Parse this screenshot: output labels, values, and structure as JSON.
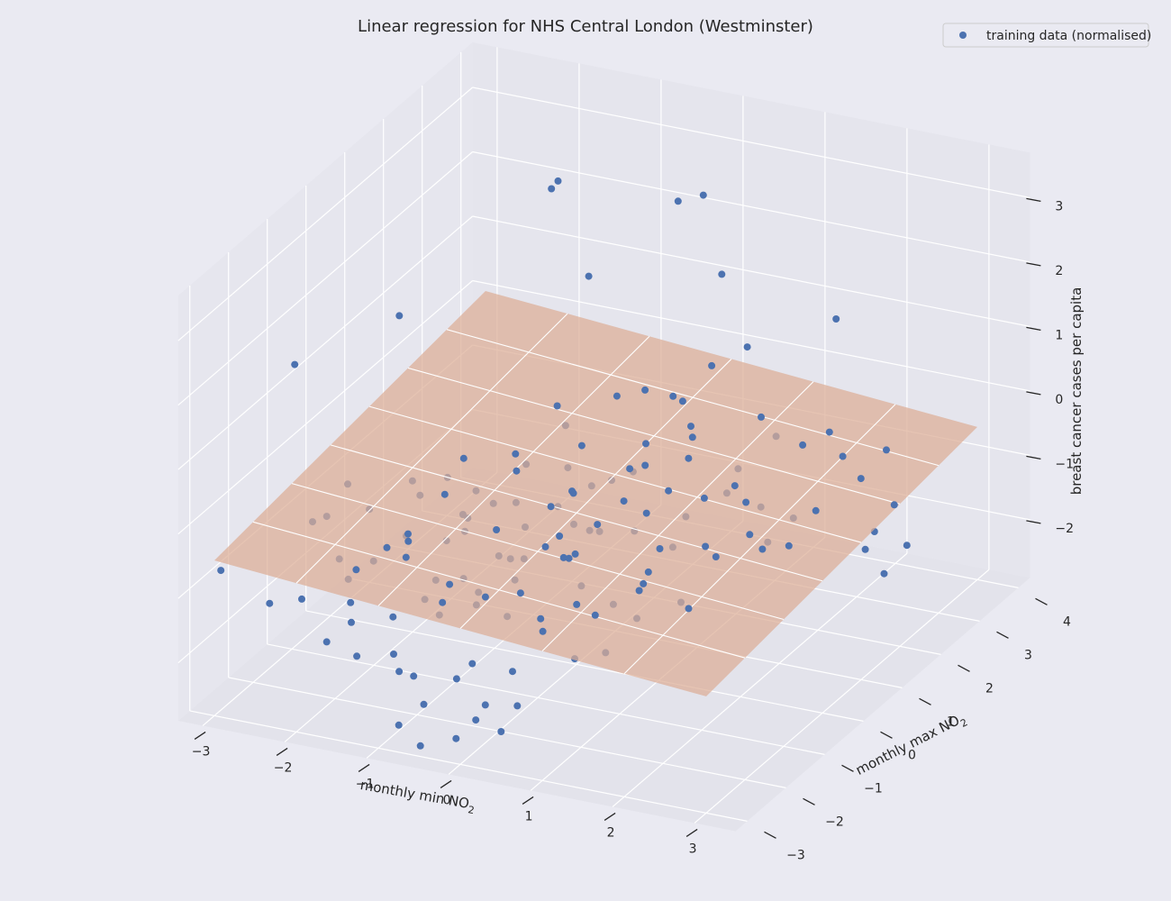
{
  "chart_data": {
    "type": "scatter",
    "title": "Linear regression for NHS Central London (Westminster)",
    "xlabel_text": "monthly min NO",
    "xlabel_sub": "2",
    "ylabel_text": "monthly max NO",
    "ylabel_sub": "2",
    "zlabel": "breast cancer cases per capita",
    "legend": {
      "label": "training data (normalised)",
      "placement": "upper-right"
    },
    "x_ticks": [
      "−3",
      "−2",
      "−1",
      "0",
      "1",
      "2",
      "3"
    ],
    "y_ticks": [
      "−3",
      "−2",
      "−1",
      "0",
      "1",
      "2",
      "3",
      "4"
    ],
    "z_ticks": [
      "−2",
      "−1",
      "0",
      "1",
      "2",
      "3"
    ],
    "xlim": [
      -3.3,
      3.5
    ],
    "ylim": [
      -3.3,
      4.3
    ],
    "zlim": [
      -2.9,
      3.7
    ],
    "grid": true,
    "colors": {
      "points": "#4c72b0",
      "plane": "#dcad96",
      "background": "#eaeaf2"
    },
    "regression_plane": {
      "z_at_origin": -0.55,
      "slope_x": -0.1,
      "slope_y": 0.08
    },
    "series": [
      {
        "name": "training data (normalised)",
        "points": [
          [
            -0.92,
            1.47,
            3.61
          ],
          [
            -1.0,
            1.47,
            3.47
          ],
          [
            -0.15,
            2.94,
            2.73
          ],
          [
            0.12,
            3.02,
            2.85
          ],
          [
            -2.36,
            0.42,
            1.7
          ],
          [
            -1.07,
            2.58,
            1.52
          ],
          [
            -0.07,
            3.9,
            1.12
          ],
          [
            -3.31,
            -0.27,
            1.06
          ],
          [
            0.85,
            2.61,
            0.89
          ],
          [
            -0.18,
            2.15,
            0.2
          ],
          [
            1.49,
            3.55,
            1.0
          ],
          [
            -1.22,
            2.3,
            -0.69
          ],
          [
            -1.35,
            0.71,
            -1.11
          ],
          [
            -1.8,
            -0.23,
            -0.61
          ],
          [
            -1.23,
            0.01,
            -0.52
          ],
          [
            -0.66,
            0.9,
            0.48
          ],
          [
            -0.18,
            0.72,
            -1.24
          ],
          [
            -0.34,
            1.11,
            -0.79
          ],
          [
            -0.3,
            1.68,
            0.32
          ],
          [
            0.36,
            1.98,
            0.25
          ],
          [
            0.02,
            1.42,
            -0.64
          ],
          [
            0.56,
            1.81,
            -0.17
          ],
          [
            0.52,
            2.39,
            0.63
          ],
          [
            0.11,
            2.26,
            0.12
          ],
          [
            0.96,
            2.14,
            -0.73
          ],
          [
            1.09,
            2.46,
            -0.06
          ],
          [
            1.06,
            2.91,
            -0.6
          ],
          [
            1.72,
            2.2,
            -0.2
          ],
          [
            2.1,
            2.43,
            -0.4
          ],
          [
            2.57,
            2.56,
            -0.25
          ],
          [
            1.45,
            1.02,
            -0.29
          ],
          [
            1.12,
            0.93,
            -0.52
          ],
          [
            0.82,
            0.64,
            -0.33
          ],
          [
            0.3,
            0.74,
            -0.17
          ],
          [
            -0.23,
            0.37,
            -0.46
          ],
          [
            -0.76,
            0.06,
            -0.12
          ],
          [
            -0.48,
            -0.31,
            -0.73
          ],
          [
            0.09,
            -0.63,
            -0.56
          ],
          [
            0.6,
            -0.73,
            -0.2
          ],
          [
            1.29,
            -0.58,
            -0.48
          ],
          [
            1.71,
            -0.29,
            -0.49
          ],
          [
            2.15,
            0.25,
            -0.7
          ],
          [
            2.33,
            -0.46,
            -0.06
          ],
          [
            2.79,
            -0.42,
            -0.14
          ],
          [
            1.71,
            -0.92,
            -1.03
          ],
          [
            1.33,
            -1.09,
            -0.75
          ],
          [
            0.75,
            -1.62,
            -0.16
          ],
          [
            0.23,
            -1.29,
            -0.35
          ],
          [
            -0.29,
            -1.09,
            -0.77
          ],
          [
            -0.58,
            -1.69,
            -0.84
          ],
          [
            -1.0,
            -1.24,
            -0.59
          ],
          [
            -1.29,
            -0.67,
            -0.24
          ],
          [
            -1.67,
            -0.86,
            -0.88
          ],
          [
            -1.37,
            -1.45,
            -0.47
          ],
          [
            -1.43,
            -1.87,
            -0.48
          ],
          [
            -1.03,
            -2.22,
            -0.35
          ],
          [
            -0.48,
            -2.26,
            -0.61
          ],
          [
            0.09,
            -1.98,
            -1.11
          ],
          [
            0.73,
            -1.74,
            -0.17
          ],
          [
            1.52,
            -1.36,
            -0.38
          ],
          [
            2.23,
            -1.12,
            -0.09
          ],
          [
            2.11,
            -1.57,
            -0.69
          ],
          [
            1.88,
            -2.36,
            -0.06
          ],
          [
            1.32,
            -2.31,
            -0.61
          ],
          [
            0.73,
            -2.47,
            -0.73
          ],
          [
            0.17,
            -2.71,
            -0.41
          ],
          [
            -0.35,
            -2.72,
            -0.62
          ],
          [
            -0.83,
            -2.98,
            -0.83
          ],
          [
            -1.24,
            -3.19,
            -0.91
          ],
          [
            -1.45,
            -2.62,
            -0.44
          ],
          [
            -1.72,
            -2.81,
            -1.53
          ],
          [
            -2.26,
            -2.31,
            -1.26
          ],
          [
            -2.0,
            -1.89,
            -0.79
          ],
          [
            -2.45,
            -1.63,
            -0.46
          ],
          [
            -2.58,
            -0.99,
            -0.74
          ],
          [
            -2.55,
            -0.51,
            -0.48
          ],
          [
            -1.93,
            -0.15,
            -0.46
          ],
          [
            -1.57,
            0.41,
            -0.31
          ],
          [
            -1.07,
            0.69,
            -0.26
          ],
          [
            -0.63,
            1.11,
            -0.58
          ],
          [
            -0.11,
            1.14,
            -0.66
          ],
          [
            0.37,
            0.99,
            -0.23
          ],
          [
            -0.08,
            0.09,
            -0.31
          ],
          [
            0.56,
            0.31,
            -0.85
          ],
          [
            1.09,
            0.18,
            -0.9
          ],
          [
            0.92,
            -0.14,
            -0.25
          ],
          [
            0.39,
            -0.23,
            -0.62
          ],
          [
            -0.09,
            -0.47,
            -0.23
          ],
          [
            -0.57,
            -0.86,
            -0.51
          ],
          [
            -1.06,
            -0.64,
            -0.77
          ],
          [
            0.57,
            -1.08,
            -0.98
          ],
          [
            1.04,
            -1.25,
            -1.06
          ],
          [
            1.54,
            -1.7,
            -0.92
          ],
          [
            0.99,
            -2.09,
            -0.64
          ],
          [
            0.39,
            -2.27,
            -0.52
          ],
          [
            -0.2,
            -2.16,
            -0.91
          ],
          [
            -0.8,
            -1.94,
            -0.79
          ],
          [
            -1.23,
            -1.74,
            -0.4
          ],
          [
            -1.8,
            -1.43,
            -1.01
          ],
          [
            -2.03,
            -1.05,
            -0.46
          ],
          [
            -2.7,
            -2.21,
            -1.49
          ],
          [
            -3.37,
            -2.05,
            -1.23
          ],
          [
            -1.32,
            -3.04,
            -0.7
          ],
          [
            -0.61,
            -3.43,
            -1.12
          ],
          [
            0.41,
            -3.22,
            -1.76
          ],
          [
            0.86,
            -2.69,
            -0.78
          ],
          [
            1.32,
            -2.84,
            -1.01
          ],
          [
            1.55,
            -2.53,
            -1.02
          ],
          [
            -0.05,
            -2.99,
            -1.59
          ],
          [
            -1.82,
            -1.82,
            -2.29
          ],
          [
            -2.16,
            -1.32,
            -1.44
          ],
          [
            -0.86,
            -2.76,
            -1.8
          ],
          [
            -0.73,
            -2.66,
            -1.89
          ],
          [
            -0.37,
            -3.16,
            -1.98
          ],
          [
            0.34,
            -3.32,
            -1.96
          ],
          [
            0.7,
            -3.01,
            -1.81
          ],
          [
            0.45,
            -2.9,
            -2.33
          ],
          [
            0.18,
            -3.49,
            -2.2
          ],
          [
            -0.58,
            -3.36,
            -2.25
          ],
          [
            -0.26,
            -3.48,
            -2.43
          ],
          [
            1.8,
            2.72,
            -0.25
          ],
          [
            2.61,
            1.82,
            -0.3
          ],
          [
            3.45,
            1.23,
            -0.82
          ],
          [
            3.07,
            0.96,
            -0.84
          ],
          [
            2.94,
            1.47,
            -0.86
          ],
          [
            3.38,
            0.79,
            -1.05
          ],
          [
            2.31,
            1.29,
            -0.6
          ],
          [
            3.14,
            1.56,
            -0.44
          ],
          [
            -1.8,
            0.48,
            -0.7
          ],
          [
            -1.12,
            1.07,
            -0.63
          ],
          [
            -0.53,
            1.26,
            -0.29
          ],
          [
            0.0,
            1.79,
            -0.4
          ],
          [
            0.47,
            1.96,
            -0.1
          ],
          [
            0.72,
            1.37,
            -0.23
          ],
          [
            1.04,
            1.68,
            -0.85
          ],
          [
            1.56,
            1.46,
            -0.82
          ],
          [
            2.07,
            1.22,
            -0.74
          ],
          [
            1.58,
            1.03,
            -0.52
          ],
          [
            1.06,
            0.58,
            -0.64
          ],
          [
            0.54,
            0.08,
            -0.27
          ],
          [
            0.0,
            -0.07,
            -0.69
          ],
          [
            -0.34,
            0.24,
            -0.66
          ],
          [
            -0.86,
            0.26,
            -0.74
          ],
          [
            -1.36,
            0.07,
            -1.01
          ],
          [
            -1.22,
            -0.35,
            -0.7
          ],
          [
            -0.72,
            -0.48,
            -1.15
          ],
          [
            -0.2,
            -0.93,
            -0.83
          ],
          [
            0.32,
            -1.01,
            -0.64
          ],
          [
            -0.01,
            -1.57,
            -0.78
          ],
          [
            -0.51,
            -1.45,
            -1.16
          ],
          [
            -0.99,
            -1.82,
            -1.2
          ],
          [
            -0.51,
            -2.46,
            -0.99
          ],
          [
            -0.01,
            -2.67,
            -1.51
          ],
          [
            0.42,
            -2.54,
            -1.59
          ],
          [
            2.04,
            0.62,
            -0.81
          ]
        ]
      }
    ]
  }
}
